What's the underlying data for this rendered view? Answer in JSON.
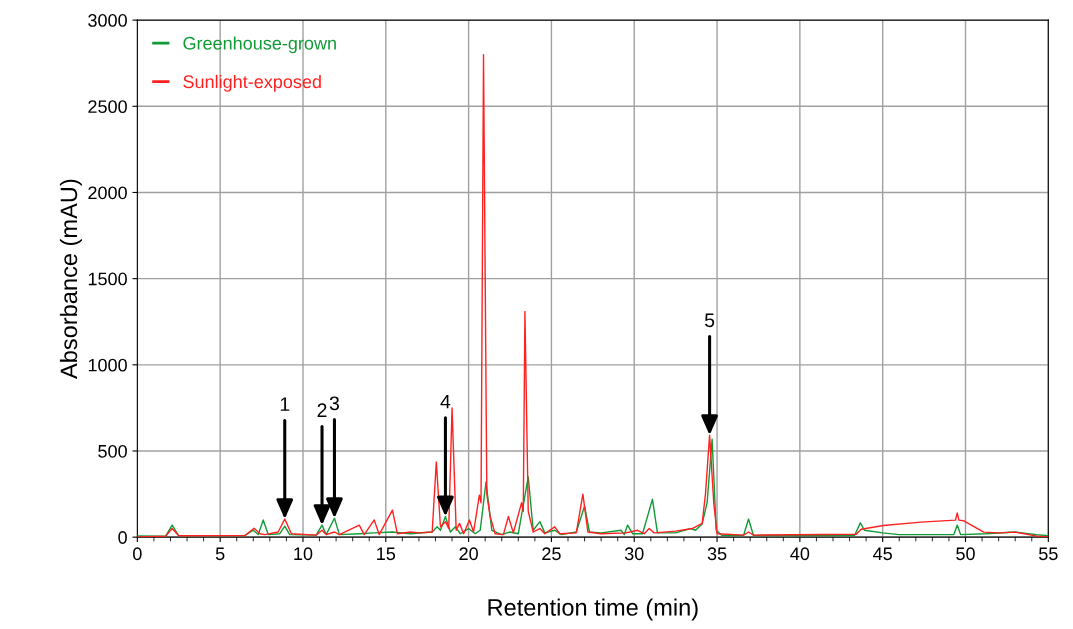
{
  "chart_data": {
    "type": "line",
    "xlabel": "Retention time (min)",
    "ylabel": "Absorbance (mAU)",
    "xlim": [
      0,
      55
    ],
    "ylim": [
      0,
      3000
    ],
    "xticks": [
      0,
      {
        "value": 1,
        "label": null
      },
      {
        "value": 2,
        "label": null
      },
      {
        "value": 3,
        "label": null
      },
      {
        "value": 4,
        "label": null
      },
      5,
      {
        "value": 6,
        "label": null
      },
      {
        "value": 7,
        "label": null
      },
      {
        "value": 8,
        "label": null
      },
      {
        "value": 9,
        "label": null
      },
      10,
      {
        "value": 11,
        "label": null
      },
      {
        "value": 12,
        "label": null
      },
      {
        "value": 13,
        "label": null
      },
      {
        "value": 14,
        "label": null
      },
      15,
      {
        "value": 16,
        "label": null
      },
      {
        "value": 17,
        "label": null
      },
      {
        "value": 18,
        "label": null
      },
      {
        "value": 19,
        "label": null
      },
      20,
      {
        "value": 21,
        "label": null
      },
      {
        "value": 22,
        "label": null
      },
      {
        "value": 23,
        "label": null
      },
      {
        "value": 24,
        "label": null
      },
      25,
      {
        "value": 26,
        "label": null
      },
      {
        "value": 27,
        "label": null
      },
      {
        "value": 28,
        "label": null
      },
      {
        "value": 29,
        "label": null
      },
      30,
      {
        "value": 31,
        "label": null
      },
      {
        "value": 32,
        "label": null
      },
      {
        "value": 33,
        "label": null
      },
      {
        "value": 34,
        "label": null
      },
      35,
      {
        "value": 36,
        "label": null
      },
      {
        "value": 37,
        "label": null
      },
      {
        "value": 38,
        "label": null
      },
      {
        "value": 39,
        "label": null
      },
      40,
      {
        "value": 41,
        "label": null
      },
      {
        "value": 42,
        "label": null
      },
      {
        "value": 43,
        "label": null
      },
      {
        "value": 44,
        "label": null
      },
      45,
      {
        "value": 46,
        "label": null
      },
      {
        "value": 47,
        "label": null
      },
      {
        "value": 48,
        "label": null
      },
      {
        "value": 49,
        "label": null
      },
      50,
      {
        "value": 51,
        "label": null
      },
      {
        "value": 52,
        "label": null
      },
      {
        "value": 53,
        "label": null
      },
      {
        "value": 54,
        "label": null
      },
      55
    ],
    "yticks": [
      0,
      500,
      1000,
      1500,
      2000,
      2500,
      3000
    ],
    "grid": true,
    "legend": "top left",
    "marker": "none",
    "line_style": "solid",
    "series": [
      {
        "name": "Greenhouse-grown",
        "color": "#109b36",
        "x": [
          0,
          1.7,
          2.1,
          2.5,
          6.5,
          7.0,
          7.3,
          7.6,
          7.9,
          8.6,
          8.9,
          9.2,
          10.8,
          11.15,
          11.4,
          11.9,
          12.2,
          13.4,
          14.3,
          15.4,
          16.5,
          17.8,
          18.1,
          18.3,
          18.6,
          18.9,
          19.2,
          19.5,
          20.0,
          20.4,
          20.7,
          21.05,
          21.4,
          22.0,
          22.5,
          23.0,
          23.6,
          23.9,
          24.3,
          24.6,
          25.2,
          25.6,
          26.5,
          27.0,
          27.3,
          28.0,
          29.2,
          29.4,
          29.6,
          29.9,
          30.5,
          31.1,
          31.4,
          32.5,
          33.4,
          33.7,
          34.1,
          34.4,
          34.7,
          34.95,
          35.3,
          36.6,
          36.9,
          37.2,
          43.3,
          43.65,
          43.9,
          45.0,
          46,
          49.3,
          49.5,
          49.7,
          51.2,
          53.0,
          54.3,
          55
        ],
        "values": [
          7,
          5,
          70,
          8,
          10,
          40,
          15,
          100,
          15,
          20,
          64,
          15,
          12,
          70,
          15,
          110,
          15,
          20,
          25,
          30,
          20,
          30,
          60,
          40,
          120,
          30,
          60,
          20,
          50,
          20,
          40,
          320,
          40,
          15,
          30,
          20,
          350,
          40,
          90,
          25,
          40,
          15,
          30,
          180,
          30,
          25,
          40,
          15,
          70,
          20,
          20,
          220,
          25,
          25,
          50,
          40,
          77,
          200,
          568,
          40,
          10,
          10,
          105,
          10,
          10,
          83,
          40,
          25,
          15,
          15,
          70,
          15,
          20,
          30,
          14,
          9
        ]
      },
      {
        "name": "Sunlight-exposed",
        "color": "#ff2020",
        "x": [
          0,
          1.7,
          2.1,
          2.5,
          6.5,
          7.05,
          7.4,
          7.7,
          8.5,
          8.9,
          9.3,
          10.8,
          11.15,
          11.4,
          11.9,
          12.2,
          13.4,
          13.7,
          14.3,
          14.6,
          15.4,
          15.7,
          16.5,
          17.0,
          17.8,
          18.05,
          18.3,
          18.6,
          18.8,
          19.0,
          19.25,
          19.45,
          19.7,
          20.05,
          20.3,
          20.65,
          20.75,
          20.9,
          21.1,
          21.3,
          21.6,
          22.1,
          22.4,
          22.7,
          23.2,
          23.3,
          23.4,
          23.6,
          23.9,
          24.3,
          24.6,
          25.2,
          25.5,
          26.5,
          26.9,
          27.2,
          28.0,
          29.5,
          30.2,
          30.6,
          30.9,
          31.2,
          32.5,
          33.5,
          34.1,
          34.3,
          34.55,
          34.8,
          35.0,
          36.6,
          36.9,
          37.2,
          43.4,
          43.7,
          45.05,
          47.3,
          49.4,
          49.5,
          49.6,
          49.9,
          51.1,
          52,
          53.0,
          54.3,
          55
        ],
        "values": [
          2,
          5,
          50,
          8,
          10,
          52,
          20,
          15,
          30,
          105,
          20,
          12,
          40,
          15,
          30,
          15,
          70,
          15,
          100,
          15,
          157,
          20,
          30,
          25,
          30,
          436,
          60,
          90,
          50,
          750,
          40,
          80,
          20,
          100,
          30,
          244,
          200,
          2800,
          250,
          120,
          20,
          15,
          120,
          25,
          200,
          150,
          1310,
          150,
          30,
          50,
          20,
          60,
          20,
          25,
          250,
          30,
          20,
          25,
          40,
          20,
          50,
          25,
          35,
          50,
          80,
          250,
          592,
          200,
          20,
          12,
          30,
          12,
          17,
          46,
          68,
          87,
          99,
          141,
          99,
          95,
          29,
          25,
          29,
          6,
          2
        ]
      }
    ],
    "annotations": [
      {
        "text": "1",
        "x": 8.9,
        "y": 105
      },
      {
        "text": "2",
        "x": 11.15,
        "y": 70
      },
      {
        "text": "3",
        "x": 11.9,
        "y": 110
      },
      {
        "text": "4",
        "x": 18.6,
        "y": 120
      },
      {
        "text": "5",
        "x": 34.55,
        "y": 592
      }
    ]
  }
}
